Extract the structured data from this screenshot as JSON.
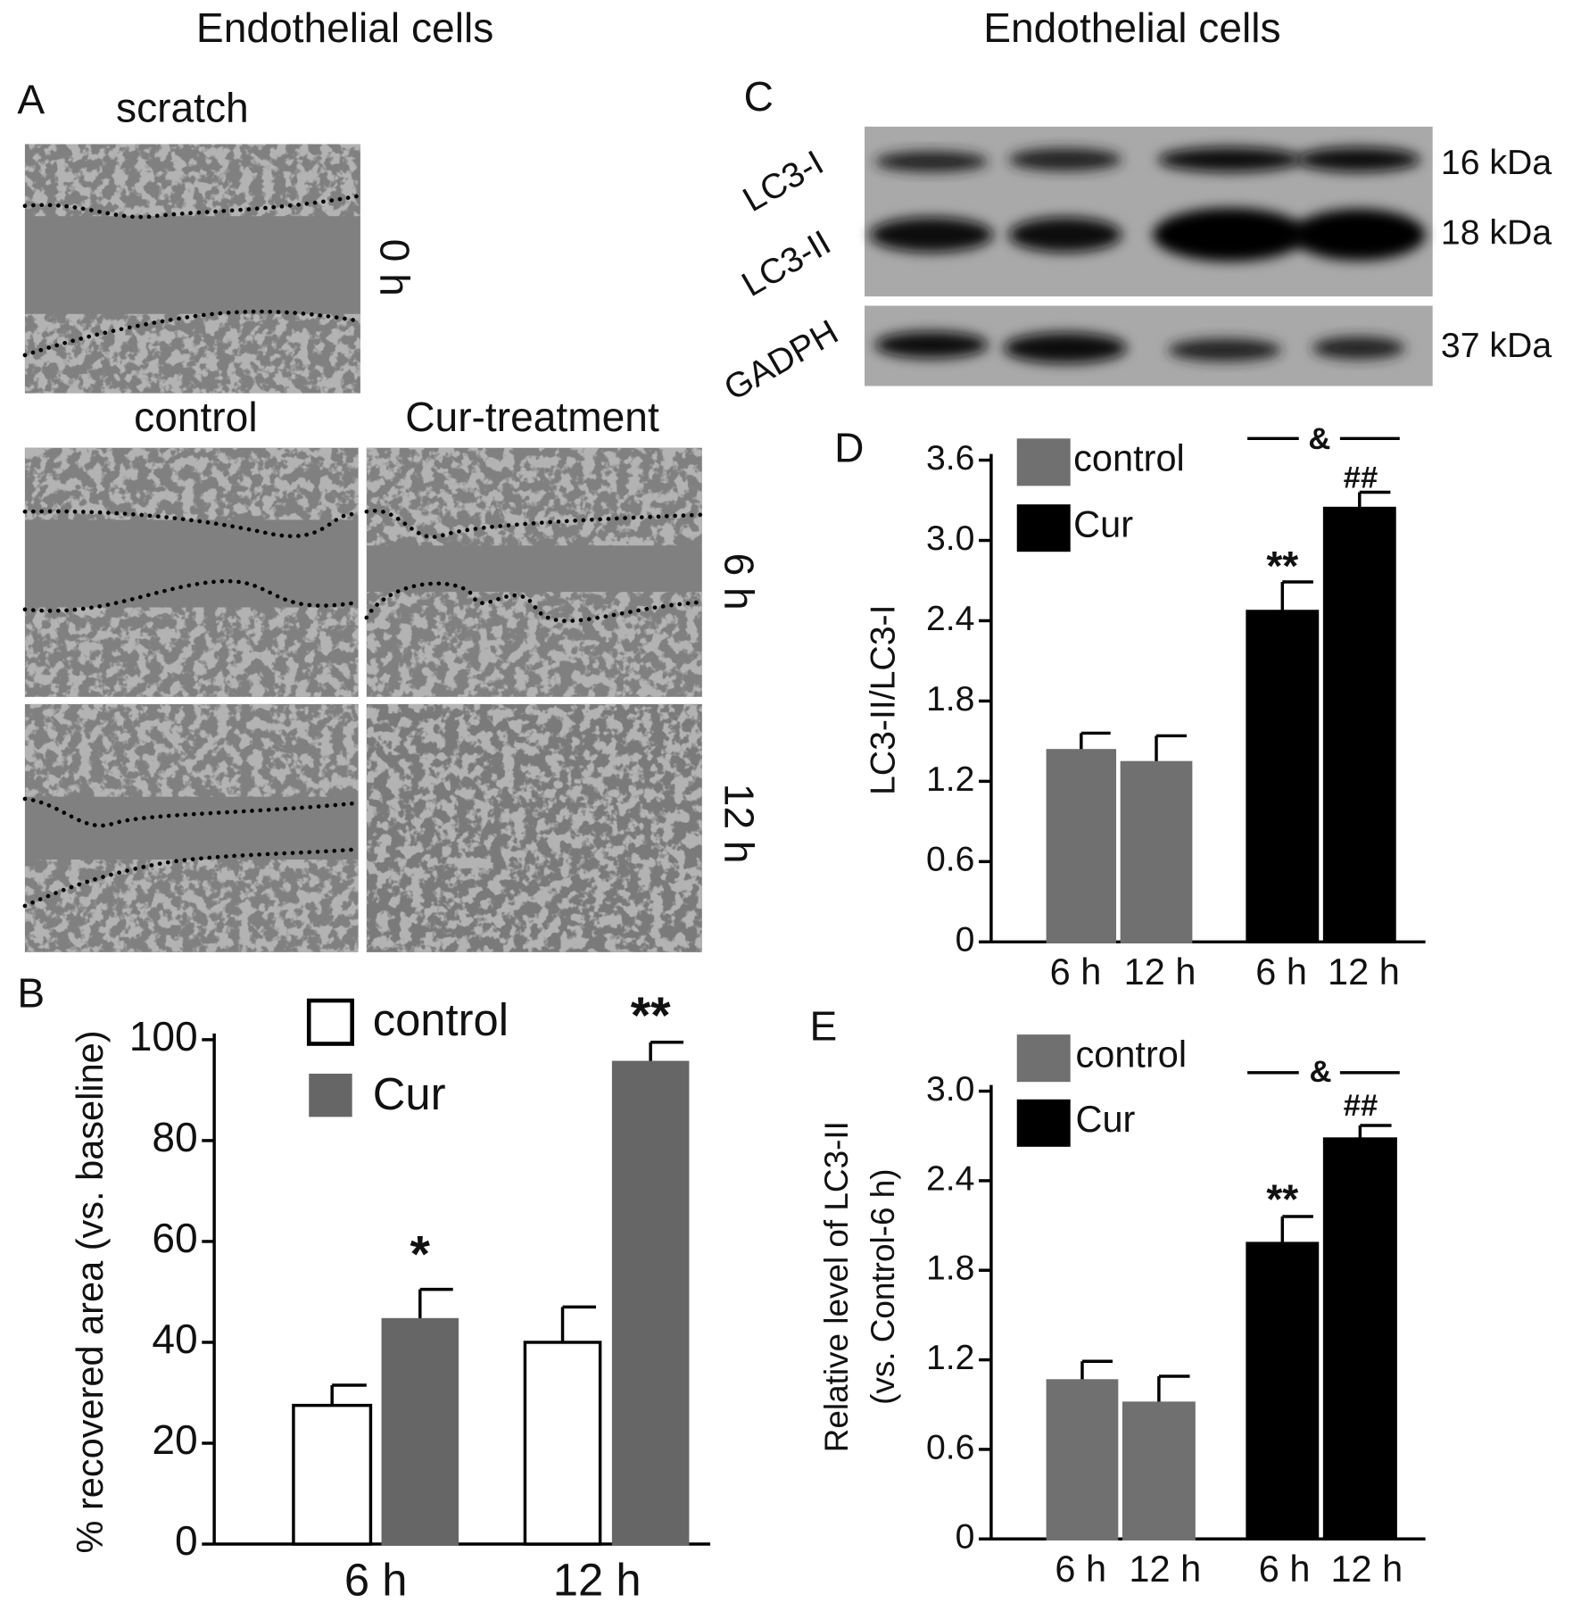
{
  "figure": {
    "headings": [
      "Endothelial cells",
      "Endothelial cells"
    ],
    "panel_a": {
      "label": "A",
      "scratch": "scratch",
      "columns": [
        "control",
        "Cur-treatment"
      ],
      "times": [
        "0 h",
        "6 h",
        "12 h"
      ]
    },
    "panel_c": {
      "label": "C",
      "bands": [
        "LC3-I",
        "LC3-II",
        "GADPH"
      ],
      "sizes": [
        "16 kDa",
        "18 kDa",
        "37 kDa"
      ]
    }
  },
  "chart_data": [
    {
      "type": "bar",
      "label": "B",
      "ylabel": "% recovered area (vs. baseline)",
      "categories": [
        "6 h",
        "12 h"
      ],
      "series": [
        {
          "name": "control",
          "color": "#ffffff",
          "values": [
            27.5,
            40
          ],
          "errors": [
            4,
            7
          ]
        },
        {
          "name": "Cur",
          "color": "#666666",
          "values": [
            44.5,
            95.5
          ],
          "errors": [
            6,
            4
          ]
        }
      ],
      "ylim": [
        0,
        100
      ],
      "yticks": [
        0,
        20,
        40,
        60,
        80,
        100
      ],
      "annotations": [
        "*",
        "**"
      ]
    },
    {
      "type": "bar",
      "label": "D",
      "ylabel": "LC3-II/LC3-I",
      "categories": [
        "6 h",
        "12 h",
        "6 h",
        "12 h"
      ],
      "series": [
        {
          "name": "control",
          "color": "#707070",
          "values": [
            1.43,
            1.34,
            null,
            null
          ],
          "errors": [
            0.13,
            0.2,
            null,
            null
          ]
        },
        {
          "name": "Cur",
          "color": "#000000",
          "values": [
            null,
            null,
            2.47,
            3.24
          ],
          "errors": [
            null,
            null,
            0.22,
            0.12
          ]
        }
      ],
      "ylim": [
        0,
        3.6
      ],
      "yticks": [
        0,
        0.6,
        1.2,
        1.8,
        2.4,
        {
          "value": 3,
          "label": "3.0"
        },
        3.6
      ],
      "annotations": [
        "**",
        "##",
        "&"
      ]
    },
    {
      "type": "bar",
      "label": "E",
      "ylabel": [
        "Relative level of LC3-II",
        "(vs. Control-6 h)"
      ],
      "categories": [
        "6 h",
        "12 h",
        "6 h",
        "12 h"
      ],
      "series": [
        {
          "name": "control",
          "color": "#707070",
          "values": [
            1.06,
            0.91,
            null,
            null
          ],
          "errors": [
            0.13,
            0.18,
            null,
            null
          ]
        },
        {
          "name": "Cur",
          "color": "#000000",
          "values": [
            null,
            null,
            1.98,
            2.68
          ],
          "errors": [
            null,
            null,
            0.18,
            0.09
          ]
        }
      ],
      "ylim": [
        0,
        3
      ],
      "yticks": [
        0,
        0.6,
        1.2,
        1.8,
        2.4,
        {
          "value": 3,
          "label": "3.0"
        }
      ],
      "annotations": [
        "**",
        "##",
        "&"
      ]
    }
  ]
}
